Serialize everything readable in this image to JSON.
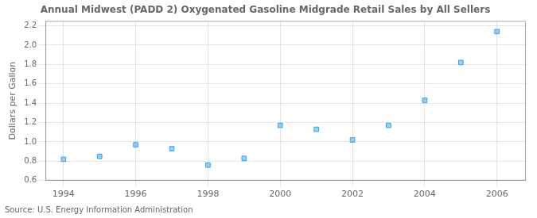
{
  "chart_data": {
    "type": "scatter",
    "title": "Annual Midwest (PADD 2) Oxygenated Gasoline Midgrade Retail Sales by All Sellers",
    "ylabel": "Dollars per Gallon",
    "annotation": "Source: U.S. Energy Information Administration",
    "x": [
      1994,
      1995,
      1996,
      1997,
      1998,
      1999,
      2000,
      2001,
      2002,
      2003,
      2004,
      2005,
      2006
    ],
    "values": [
      0.82,
      0.85,
      0.97,
      0.93,
      0.76,
      0.83,
      1.17,
      1.13,
      1.02,
      1.17,
      1.43,
      1.82,
      2.14
    ],
    "xlim": [
      1993.5,
      2006.8
    ],
    "ylim": [
      0.6,
      2.25
    ],
    "xticks": [
      1994,
      1996,
      1998,
      2000,
      2002,
      2004,
      2006
    ],
    "yticks": [
      0.6,
      0.8,
      {
        "value": 1,
        "label": "1.0"
      },
      1.2,
      1.4,
      1.6,
      1.8,
      {
        "value": 2,
        "label": "2.0"
      },
      2.2
    ],
    "marker": "square",
    "grid": true
  }
}
